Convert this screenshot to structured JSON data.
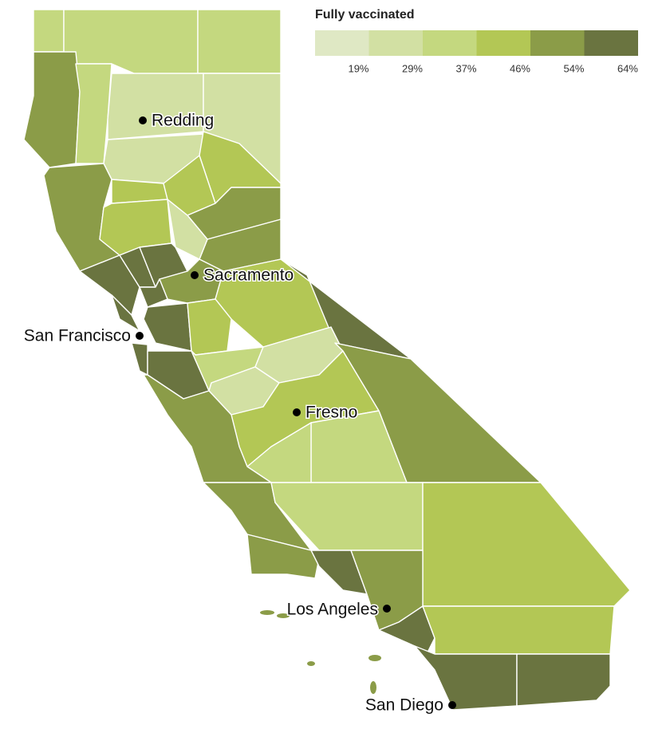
{
  "legend": {
    "title": "Fully vaccinated",
    "colors": [
      "#dfe8c4",
      "#d2e0a3",
      "#c4d87f",
      "#b3c755",
      "#8b9c48",
      "#6a7440"
    ],
    "ticks": [
      "19%",
      "29%",
      "37%",
      "46%",
      "54%",
      "64%"
    ]
  },
  "cities": [
    {
      "name": "Redding"
    },
    {
      "name": "Sacramento"
    },
    {
      "name": "San Francisco"
    },
    {
      "name": "Fresno"
    },
    {
      "name": "Los Angeles"
    },
    {
      "name": "San Diego"
    }
  ]
}
